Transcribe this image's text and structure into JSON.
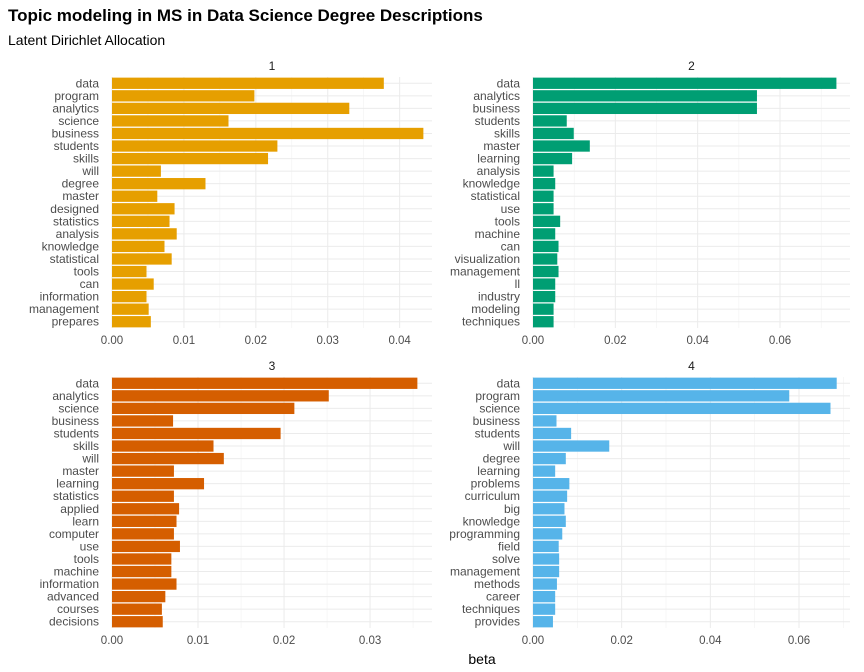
{
  "title": "Topic modeling in MS in Data Science Degree Descriptions",
  "subtitle": "Latent Dirichlet Allocation",
  "chart_data": [
    {
      "type": "bar",
      "orientation": "horizontal",
      "title": "1",
      "color": "#E69F00",
      "xlim": [
        0,
        0.0445
      ],
      "xticks": [
        0.0,
        0.01,
        0.02,
        0.03,
        0.04
      ],
      "xtick_labels": [
        "0.00",
        "0.01",
        "0.02",
        "0.03",
        "0.04"
      ],
      "categories": [
        "data",
        "program",
        "analytics",
        "science",
        "business",
        "students",
        "skills",
        "will",
        "degree",
        "master",
        "designed",
        "statistics",
        "analysis",
        "knowledge",
        "statistical",
        "tools",
        "can",
        "information",
        "management",
        "prepares"
      ],
      "values": [
        0.0378,
        0.0198,
        0.033,
        0.0162,
        0.0433,
        0.023,
        0.0217,
        0.0068,
        0.013,
        0.0063,
        0.0087,
        0.008,
        0.009,
        0.0073,
        0.0083,
        0.0048,
        0.0058,
        0.0048,
        0.0051,
        0.0054
      ]
    },
    {
      "type": "bar",
      "orientation": "horizontal",
      "title": "2",
      "color": "#009E73",
      "xlim": [
        0,
        0.077
      ],
      "xticks": [
        0.0,
        0.02,
        0.04,
        0.06
      ],
      "xtick_labels": [
        "0.00",
        "0.02",
        "0.04",
        "0.06"
      ],
      "categories": [
        "data",
        "analytics",
        "business",
        "students",
        "skills",
        "master",
        "learning",
        "analysis",
        "knowledge",
        "statistical",
        "use",
        "tools",
        "machine",
        "can",
        "visualization",
        "management",
        "ll",
        "industry",
        "modeling",
        "techniques"
      ],
      "values": [
        0.0737,
        0.0544,
        0.0544,
        0.0082,
        0.0099,
        0.0138,
        0.0095,
        0.005,
        0.0054,
        0.005,
        0.005,
        0.0066,
        0.0054,
        0.0062,
        0.0059,
        0.0062,
        0.0054,
        0.0054,
        0.005,
        0.005
      ]
    },
    {
      "type": "bar",
      "orientation": "horizontal",
      "title": "3",
      "color": "#D55E00",
      "xlim": [
        0,
        0.0372
      ],
      "xticks": [
        0.0,
        0.01,
        0.02,
        0.03
      ],
      "xtick_labels": [
        "0.00",
        "0.01",
        "0.02",
        "0.03"
      ],
      "categories": [
        "data",
        "analytics",
        "science",
        "business",
        "students",
        "skills",
        "will",
        "master",
        "learning",
        "statistics",
        "applied",
        "learn",
        "computer",
        "use",
        "tools",
        "machine",
        "information",
        "advanced",
        "courses",
        "decisions"
      ],
      "values": [
        0.0355,
        0.0252,
        0.0212,
        0.0071,
        0.0196,
        0.0118,
        0.013,
        0.0072,
        0.0107,
        0.0072,
        0.0078,
        0.0075,
        0.0072,
        0.0079,
        0.0069,
        0.0069,
        0.0075,
        0.0062,
        0.0058,
        0.0059
      ]
    },
    {
      "type": "bar",
      "orientation": "horizontal",
      "title": "4",
      "color": "#56B4E9",
      "xlim": [
        0,
        0.0715
      ],
      "xticks": [
        0.0,
        0.02,
        0.04,
        0.06
      ],
      "xtick_labels": [
        "0.00",
        "0.02",
        "0.04",
        "0.06"
      ],
      "categories": [
        "data",
        "program",
        "science",
        "business",
        "students",
        "will",
        "degree",
        "learning",
        "problems",
        "curriculum",
        "big",
        "knowledge",
        "programming",
        "field",
        "solve",
        "management",
        "methods",
        "career",
        "techniques",
        "provides"
      ],
      "values": [
        0.0685,
        0.0578,
        0.0671,
        0.0053,
        0.0086,
        0.0172,
        0.0074,
        0.005,
        0.0082,
        0.0077,
        0.0071,
        0.0074,
        0.0066,
        0.0058,
        0.0059,
        0.0059,
        0.0054,
        0.005,
        0.005,
        0.0045
      ]
    }
  ],
  "xlabel": "beta"
}
